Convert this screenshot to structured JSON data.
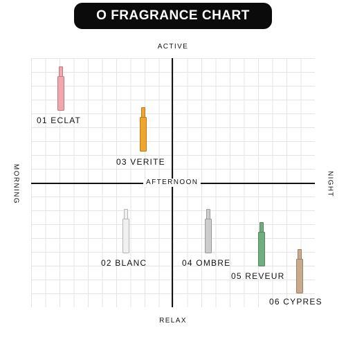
{
  "title": "O FRAGRANCE CHART",
  "axes": {
    "top": "ACTIVE",
    "bottom": "RELAX",
    "left": "MORNING",
    "right": "NIGHT",
    "center": "AFTERNOON"
  },
  "fragrances": [
    {
      "label": "01 ECLAT",
      "color": "#f4a6ad"
    },
    {
      "label": "02 BLANC",
      "color": "#f0f0f0"
    },
    {
      "label": "03 VERITE",
      "color": "#f0a52e"
    },
    {
      "label": "04 OMBRE",
      "color": "#cccccc"
    },
    {
      "label": "05 REVEUR",
      "color": "#6faf7f"
    },
    {
      "label": "06 CYPRES",
      "color": "#c9ab8c"
    }
  ]
}
